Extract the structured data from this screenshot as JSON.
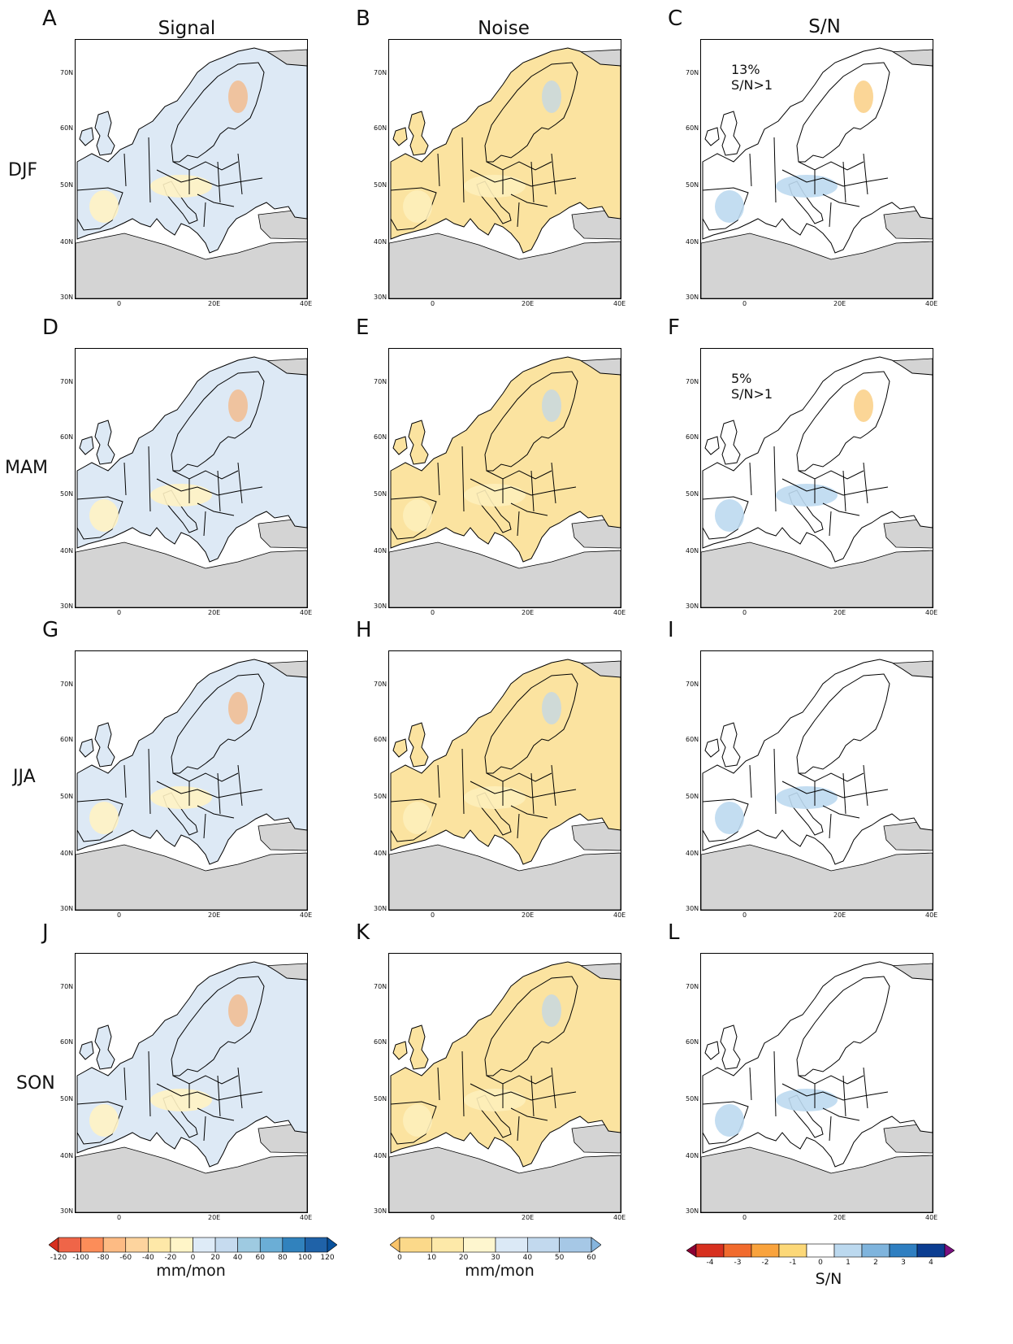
{
  "column_titles": [
    "Signal",
    "Noise",
    "S/N"
  ],
  "row_labels": [
    "DJF",
    "MAM",
    "JJA",
    "SON"
  ],
  "panels": [
    {
      "letter": "A",
      "variable": "signal",
      "season": "DJF"
    },
    {
      "letter": "B",
      "variable": "noise",
      "season": "DJF"
    },
    {
      "letter": "C",
      "variable": "sn",
      "season": "DJF",
      "annotation": "13% S/N>1"
    },
    {
      "letter": "D",
      "variable": "signal",
      "season": "MAM"
    },
    {
      "letter": "E",
      "variable": "noise",
      "season": "MAM"
    },
    {
      "letter": "F",
      "variable": "sn",
      "season": "MAM",
      "annotation": "5% S/N>1"
    },
    {
      "letter": "G",
      "variable": "signal",
      "season": "JJA"
    },
    {
      "letter": "H",
      "variable": "noise",
      "season": "JJA"
    },
    {
      "letter": "I",
      "variable": "sn",
      "season": "JJA",
      "annotation": ""
    },
    {
      "letter": "J",
      "variable": "signal",
      "season": "SON"
    },
    {
      "letter": "K",
      "variable": "noise",
      "season": "SON"
    },
    {
      "letter": "L",
      "variable": "sn",
      "season": "SON",
      "annotation": ""
    }
  ],
  "axes": {
    "lat_ticks": [
      "70N",
      "60N",
      "50N",
      "40N",
      "30N"
    ],
    "lon_ticks": [
      "0",
      "20E",
      "40E"
    ]
  },
  "colorbars": {
    "signal": {
      "unit": "mm/mon",
      "ticks": [
        "-120",
        "-100",
        "-80",
        "-60",
        "-40",
        "-20",
        "0",
        "20",
        "40",
        "60",
        "80",
        "100",
        "120"
      ],
      "colors": [
        "#d7301f",
        "#ef6548",
        "#fc8d59",
        "#fdbb84",
        "#fdd49e",
        "#fee8a8",
        "#fff5c8",
        "#deebf7",
        "#c6dbef",
        "#9ecae1",
        "#6baed6",
        "#3182bd",
        "#1f62a8",
        "#08519c"
      ]
    },
    "noise": {
      "unit": "mm/mon",
      "ticks": [
        "0",
        "10",
        "20",
        "30",
        "40",
        "50",
        "60"
      ],
      "colors": [
        "#f9c46b",
        "#fbd98a",
        "#fde9a9",
        "#fef6cf",
        "#dbe9f6",
        "#c2d9ee",
        "#a6c8e6",
        "#86b5dd"
      ]
    },
    "sn": {
      "unit": "S/N",
      "ticks": [
        "-4",
        "-3",
        "-2",
        "-1",
        "0",
        "1",
        "2",
        "3",
        "4"
      ],
      "colors": [
        "#8b0033",
        "#d7301f",
        "#f16b2e",
        "#f9a33d",
        "#fcd878",
        "#ffffff",
        "#bcd9ef",
        "#7fb4dd",
        "#2f7fc1",
        "#0b3d91",
        "#7a1080"
      ]
    }
  }
}
